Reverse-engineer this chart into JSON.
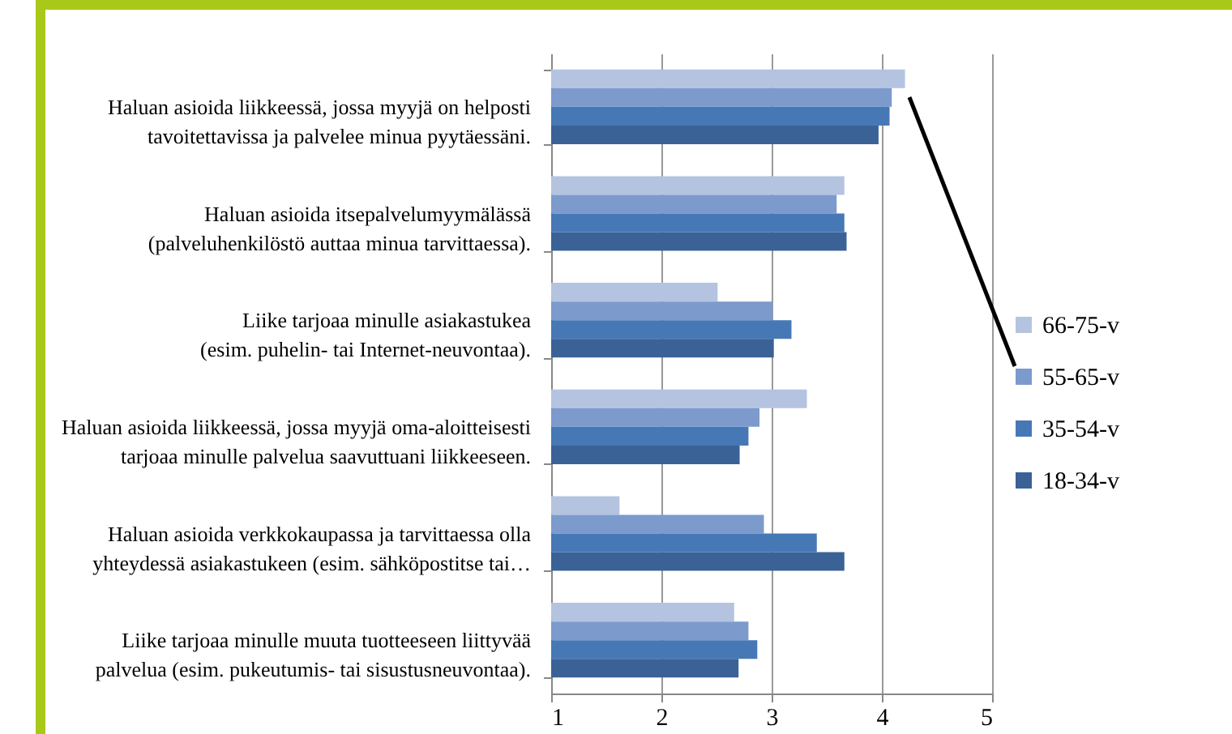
{
  "chart_data": {
    "type": "bar",
    "orientation": "horizontal",
    "categories": [
      "Haluan asioida liikkeessä, jossa myyjä on helposti tavoitettavissa ja palvelee minua pyytäessäni.",
      "Haluan asioida itsepalvelumyymälässä (palveluhenkilöstö auttaa minua tarvittaessa).",
      "Liike tarjoaa minulle asiakastukea (esim. puhelin- tai Internet-neuvontaa).",
      "Haluan asioida liikkeessä, jossa myyjä oma-aloitteisesti tarjoaa minulle palvelua saavuttuani liikkeeseen.",
      "Haluan asioida verkkokaupassa ja tarvittaessa olla yhteydessä asiakastukeen (esim. sähköpostitse tai…",
      "Liike tarjoaa minulle muuta tuotteeseen liittyvää palvelua (esim. pukeutumis- tai sisustusneuvontaa)."
    ],
    "series": [
      {
        "name": "66-75-v",
        "color": "#b4c3e0",
        "values": [
          4.21,
          3.66,
          2.51,
          3.32,
          1.62,
          2.66
        ]
      },
      {
        "name": "55-65-v",
        "color": "#7c9bcc",
        "values": [
          4.09,
          3.59,
          3.01,
          2.89,
          2.93,
          2.79
        ]
      },
      {
        "name": "35-54-v",
        "color": "#4778b6",
        "values": [
          4.07,
          3.66,
          3.18,
          2.79,
          3.41,
          2.87
        ]
      },
      {
        "name": "18-34-v",
        "color": "#3a6296",
        "values": [
          3.97,
          3.68,
          3.02,
          2.71,
          3.66,
          2.7
        ]
      }
    ],
    "xlim": [
      1,
      5
    ],
    "xticks": [
      1,
      2,
      3,
      4,
      5
    ],
    "grid": "x",
    "legend": "right"
  }
}
